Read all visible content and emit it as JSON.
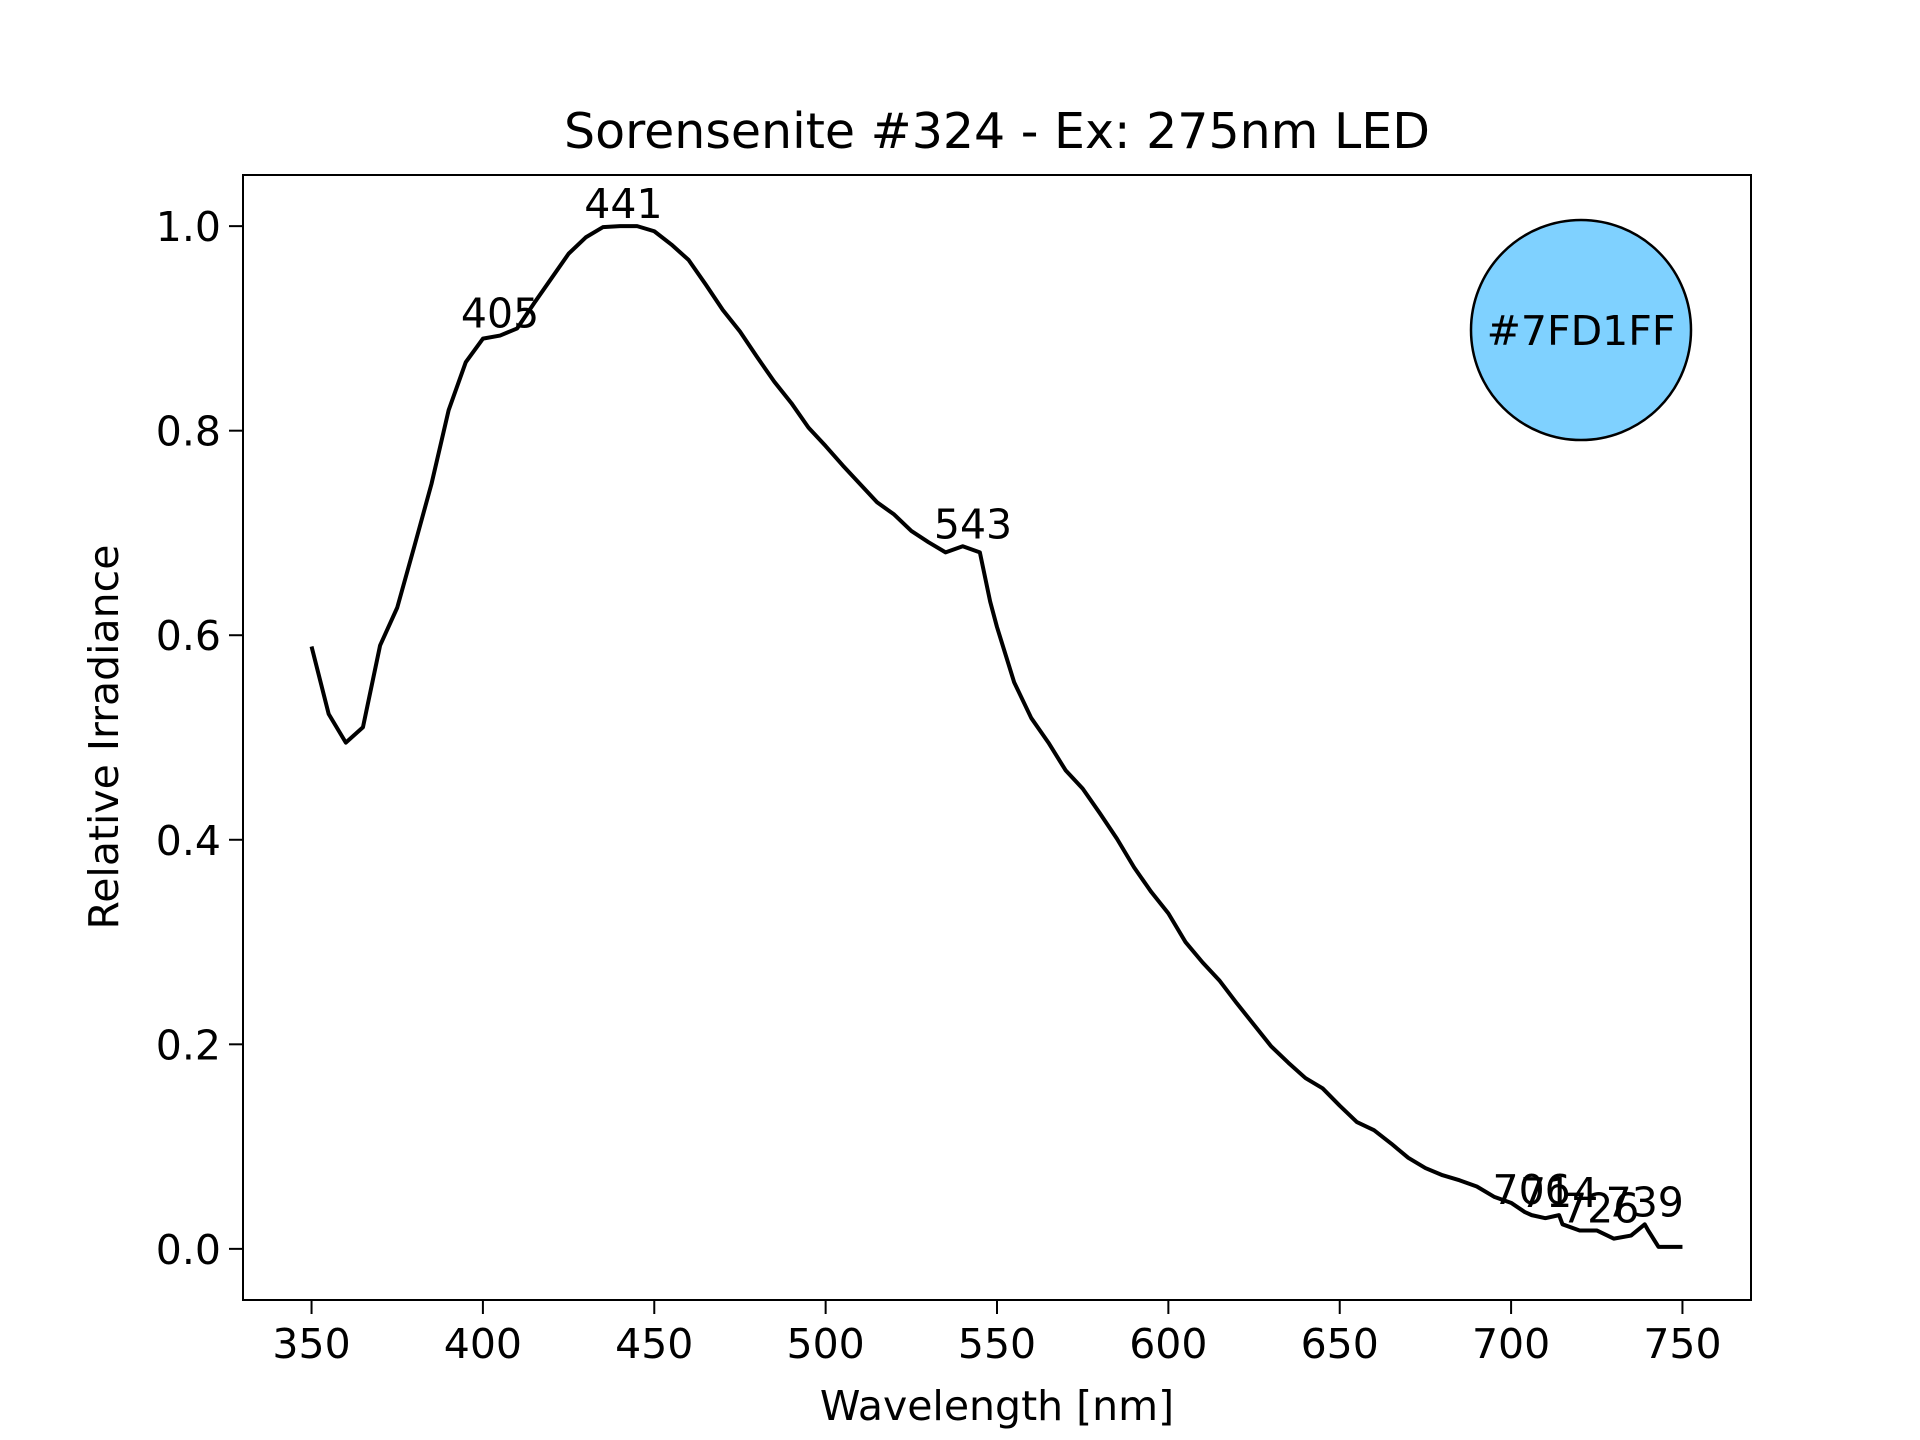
{
  "chart_data": {
    "type": "line",
    "title": "Sorensenite #324 - Ex: 275nm LED",
    "xlabel": "Wavelength [nm]",
    "ylabel": "Relative Irradiance",
    "x": [
      350,
      355,
      360,
      365,
      370,
      375,
      380,
      385,
      390,
      395,
      400,
      405,
      410,
      415,
      420,
      425,
      430,
      435,
      440,
      445,
      450,
      455,
      460,
      465,
      470,
      475,
      480,
      485,
      490,
      495,
      500,
      505,
      510,
      515,
      520,
      525,
      530,
      535,
      540,
      545,
      548,
      550,
      555,
      560,
      565,
      570,
      575,
      580,
      585,
      590,
      595,
      600,
      605,
      610,
      615,
      620,
      625,
      630,
      635,
      640,
      645,
      650,
      655,
      660,
      665,
      670,
      675,
      680,
      685,
      690,
      695,
      700,
      704,
      706,
      710,
      714,
      715,
      720,
      725,
      730,
      735,
      739,
      740,
      743,
      745,
      750
    ],
    "series": [
      {
        "color": "#000000",
        "values": [
          0.589,
          0.523,
          0.495,
          0.51,
          0.59,
          0.627,
          0.687,
          0.748,
          0.82,
          0.867,
          0.89,
          0.893,
          0.9,
          0.925,
          0.949,
          0.973,
          0.989,
          0.999,
          1.0,
          1.0,
          0.995,
          0.982,
          0.967,
          0.943,
          0.918,
          0.897,
          0.872,
          0.848,
          0.827,
          0.803,
          0.785,
          0.766,
          0.748,
          0.73,
          0.718,
          0.702,
          0.691,
          0.681,
          0.687,
          0.681,
          0.633,
          0.608,
          0.554,
          0.519,
          0.495,
          0.468,
          0.45,
          0.426,
          0.401,
          0.373,
          0.349,
          0.328,
          0.3,
          0.28,
          0.262,
          0.24,
          0.219,
          0.198,
          0.182,
          0.167,
          0.157,
          0.14,
          0.124,
          0.116,
          0.103,
          0.089,
          0.079,
          0.072,
          0.067,
          0.061,
          0.051,
          0.045,
          0.036,
          0.033,
          0.03,
          0.033,
          0.024,
          0.018,
          0.018,
          0.01,
          0.013,
          0.024,
          0.018,
          0.002,
          0.002,
          0.002
        ]
      }
    ],
    "annotations": [
      {
        "x": 405,
        "y": 0.893
      },
      {
        "x": 441,
        "y": 1.0
      },
      {
        "x": 543,
        "y": 0.687
      },
      {
        "x": 706,
        "y": 0.036
      },
      {
        "x": 714,
        "y": 0.033
      },
      {
        "x": 726,
        "y": 0.018
      },
      {
        "x": 739,
        "y": 0.024
      }
    ],
    "swatch": {
      "color": "#7FD1FF"
    },
    "xlim": [
      330,
      770
    ],
    "ylim": [
      -0.05,
      1.05
    ],
    "xticks": [
      350,
      400,
      450,
      500,
      550,
      600,
      650,
      700,
      750
    ],
    "yticks": [
      {
        "value": 0,
        "label": "0.0"
      },
      0.2,
      0.4,
      0.6,
      0.8,
      {
        "value": 1,
        "label": "1.0"
      }
    ],
    "grid": false
  }
}
